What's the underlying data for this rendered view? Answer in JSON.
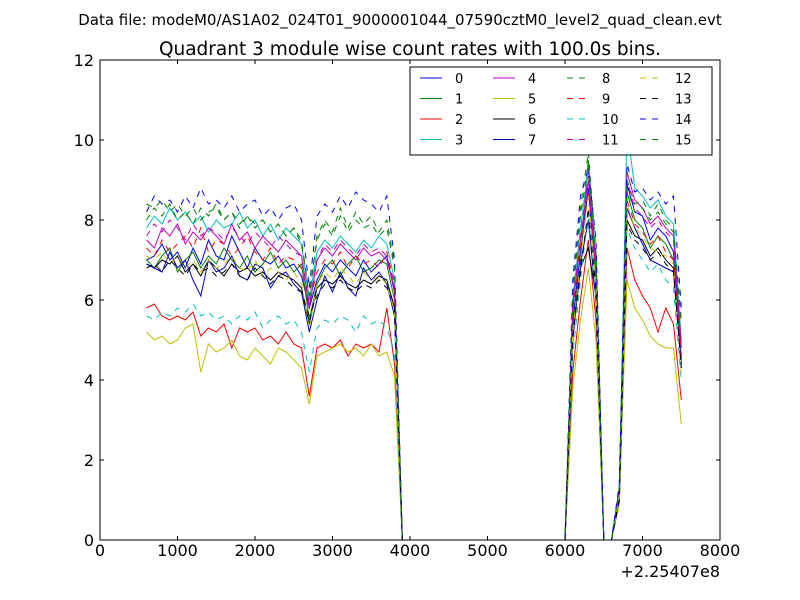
{
  "header": {
    "data_file": "Data file: modeM0/AS1A02_024T01_9000001044_07590cztM0_level2_quad_clean.evt"
  },
  "chart_data": {
    "type": "line",
    "title": "Quadrant 3 module wise count rates with 100.0s bins.",
    "xlabel": "",
    "ylabel": "",
    "x_offset_label": "+2.25407e8",
    "xlim": [
      0,
      8000
    ],
    "ylim": [
      0,
      12
    ],
    "xticks": [
      0,
      1000,
      2000,
      3000,
      4000,
      5000,
      6000,
      7000,
      8000
    ],
    "yticks": [
      0,
      2,
      4,
      6,
      8,
      10,
      12
    ],
    "legend_position": "top-right",
    "x": [
      600,
      700,
      800,
      900,
      1000,
      1100,
      1200,
      1300,
      1400,
      1500,
      1600,
      1700,
      1800,
      1900,
      2000,
      2100,
      2200,
      2300,
      2400,
      2500,
      2600,
      2700,
      2800,
      2900,
      3000,
      3100,
      3200,
      3300,
      3400,
      3500,
      3600,
      3700,
      3800,
      3900,
      4000,
      5900,
      6000,
      6100,
      6200,
      6300,
      6400,
      6500,
      6600,
      6700,
      6800,
      6900,
      7000,
      7100,
      7200,
      7300,
      7400,
      7500
    ],
    "series": [
      {
        "name": "0",
        "color": "#0000ff",
        "dash": false,
        "values": [
          7.0,
          7.1,
          7.4,
          7.0,
          7.2,
          6.8,
          7.3,
          6.9,
          7.5,
          7.1,
          7.0,
          7.6,
          7.2,
          6.8,
          7.3,
          7.0,
          6.9,
          7.1,
          6.8,
          6.9,
          6.6,
          5.8,
          6.5,
          6.9,
          6.7,
          7.0,
          6.8,
          6.6,
          7.0,
          6.7,
          6.9,
          7.1,
          6.2,
          0,
          0,
          0,
          0,
          5.5,
          7.2,
          8.8,
          6.5,
          0,
          0,
          1.2,
          8.9,
          8.2,
          8.1,
          7.5,
          7.8,
          7.6,
          7.2,
          4.5
        ]
      },
      {
        "name": "1",
        "color": "#008000",
        "dash": false,
        "values": [
          7.0,
          6.8,
          7.1,
          7.3,
          6.7,
          7.0,
          7.2,
          6.8,
          7.1,
          6.9,
          7.3,
          7.0,
          6.8,
          7.1,
          6.7,
          6.9,
          7.2,
          6.8,
          7.0,
          6.7,
          6.9,
          5.5,
          6.4,
          6.8,
          7.0,
          6.6,
          6.9,
          7.1,
          6.7,
          6.8,
          7.0,
          6.9,
          6.0,
          0,
          0,
          0,
          0,
          5.3,
          7.0,
          9.5,
          6.3,
          0,
          0,
          1.1,
          8.7,
          8.0,
          7.8,
          7.3,
          7.6,
          7.4,
          7.0,
          4.4
        ]
      },
      {
        "name": "2",
        "color": "#ff0000",
        "dash": false,
        "values": [
          5.8,
          5.9,
          5.6,
          5.5,
          5.6,
          5.5,
          5.7,
          5.1,
          5.3,
          5.2,
          5.4,
          4.8,
          5.3,
          5.2,
          5.3,
          5.0,
          5.1,
          4.9,
          5.2,
          4.9,
          4.8,
          3.6,
          4.8,
          4.9,
          4.8,
          5.0,
          4.6,
          4.9,
          4.8,
          4.9,
          4.7,
          5.8,
          4.4,
          0,
          0,
          0,
          0,
          4.2,
          6.0,
          7.5,
          5.5,
          0,
          0,
          1.0,
          7.3,
          6.5,
          6.1,
          5.8,
          5.2,
          5.8,
          5.4,
          3.5
        ]
      },
      {
        "name": "3",
        "color": "#00bfbf",
        "dash": false,
        "values": [
          7.8,
          8.1,
          7.9,
          8.3,
          8.0,
          8.2,
          7.9,
          8.1,
          7.7,
          8.0,
          7.8,
          7.9,
          8.2,
          7.8,
          8.0,
          7.6,
          7.9,
          7.5,
          7.8,
          7.6,
          7.4,
          6.0,
          7.2,
          7.5,
          7.3,
          7.6,
          7.4,
          7.2,
          7.5,
          7.3,
          7.6,
          7.4,
          6.5,
          0,
          0,
          0,
          0,
          6.0,
          7.8,
          9.3,
          7.0,
          0,
          0,
          1.3,
          10.3,
          8.8,
          8.6,
          8.3,
          8.5,
          8.1,
          7.9,
          5.0
        ]
      },
      {
        "name": "4",
        "color": "#bf00bf",
        "dash": false,
        "values": [
          7.5,
          7.3,
          7.8,
          7.6,
          7.9,
          7.4,
          7.7,
          7.5,
          7.8,
          7.6,
          7.4,
          7.9,
          7.5,
          7.7,
          7.3,
          7.6,
          7.4,
          7.2,
          7.5,
          7.3,
          7.1,
          5.8,
          7.0,
          7.3,
          7.1,
          7.4,
          7.2,
          7.0,
          7.3,
          7.1,
          7.2,
          7.0,
          6.3,
          0,
          0,
          0,
          0,
          5.8,
          7.5,
          9.0,
          6.8,
          0,
          0,
          1.2,
          9.2,
          8.5,
          8.3,
          7.9,
          8.1,
          7.8,
          7.6,
          4.8
        ]
      },
      {
        "name": "5",
        "color": "#bfbf00",
        "dash": false,
        "values": [
          5.2,
          5.0,
          5.1,
          4.9,
          5.0,
          5.3,
          5.4,
          4.2,
          4.9,
          4.7,
          4.8,
          5.0,
          4.6,
          4.5,
          4.8,
          4.6,
          4.4,
          4.8,
          4.7,
          4.5,
          4.3,
          3.4,
          4.6,
          4.7,
          4.8,
          4.9,
          4.7,
          4.8,
          4.6,
          4.9,
          4.6,
          4.7,
          4.1,
          0,
          0,
          0,
          0,
          3.8,
          5.5,
          6.8,
          5.0,
          0,
          0,
          0.9,
          6.5,
          5.8,
          5.5,
          5.1,
          4.9,
          4.8,
          4.8,
          2.9
        ]
      },
      {
        "name": "6",
        "color": "#000000",
        "dash": false,
        "values": [
          6.9,
          6.8,
          7.0,
          6.9,
          7.1,
          6.7,
          6.9,
          6.6,
          7.0,
          6.8,
          6.6,
          6.9,
          6.7,
          6.8,
          6.6,
          6.7,
          6.5,
          6.7,
          6.6,
          6.5,
          6.3,
          5.4,
          6.3,
          6.5,
          6.4,
          6.6,
          6.4,
          6.3,
          6.5,
          6.4,
          6.6,
          6.5,
          5.8,
          0,
          0,
          0,
          0,
          5.1,
          6.8,
          7.3,
          6.1,
          0,
          0,
          1.0,
          8.0,
          7.6,
          7.5,
          7.1,
          7.3,
          7.0,
          6.8,
          4.3
        ]
      },
      {
        "name": "7",
        "color": "#0000bf",
        "dash": false,
        "values": [
          6.9,
          6.8,
          6.7,
          7.2,
          6.8,
          7.0,
          6.5,
          6.1,
          7.0,
          6.7,
          6.8,
          7.1,
          6.6,
          6.5,
          6.9,
          6.8,
          6.3,
          6.6,
          6.7,
          6.4,
          6.2,
          5.2,
          6.0,
          6.6,
          6.2,
          6.7,
          6.3,
          6.1,
          6.8,
          6.5,
          6.7,
          6.4,
          5.6,
          0,
          0,
          0,
          0,
          5.0,
          6.9,
          8.0,
          6.0,
          0,
          0,
          1.0,
          8.3,
          7.8,
          7.4,
          7.0,
          6.9,
          6.8,
          6.7,
          4.4
        ]
      },
      {
        "name": "8",
        "color": "#008000",
        "dash": true,
        "values": [
          8.0,
          8.3,
          8.1,
          8.4,
          8.0,
          8.2,
          7.9,
          8.3,
          8.1,
          8.4,
          8.0,
          8.2,
          7.8,
          8.1,
          7.9,
          8.0,
          7.7,
          7.9,
          7.6,
          7.8,
          7.5,
          6.1,
          7.6,
          8.0,
          7.7,
          8.3,
          7.8,
          8.2,
          7.9,
          8.1,
          7.7,
          8.0,
          6.9,
          0,
          0,
          0,
          0,
          6.2,
          8.3,
          9.7,
          7.2,
          0,
          0,
          1.3,
          9.0,
          8.4,
          8.5,
          8.1,
          8.4,
          8.0,
          7.8,
          5.5
        ]
      },
      {
        "name": "9",
        "color": "#ff0000",
        "dash": true,
        "values": [
          7.3,
          7.1,
          7.5,
          7.2,
          7.4,
          7.6,
          7.3,
          7.8,
          7.2,
          7.5,
          7.4,
          7.1,
          7.3,
          7.6,
          7.2,
          7.0,
          7.3,
          6.9,
          7.1,
          7.0,
          6.8,
          5.9,
          6.7,
          7.0,
          6.9,
          7.2,
          6.8,
          7.1,
          6.9,
          7.0,
          6.8,
          7.2,
          6.4,
          0,
          0,
          0,
          0,
          5.7,
          7.4,
          8.7,
          6.6,
          0,
          0,
          1.1,
          8.5,
          7.9,
          7.7,
          7.4,
          7.6,
          7.2,
          7.0,
          4.6
        ]
      },
      {
        "name": "10",
        "color": "#00bfbf",
        "dash": true,
        "values": [
          5.6,
          5.5,
          5.7,
          5.6,
          5.8,
          5.7,
          5.9,
          5.6,
          5.7,
          5.5,
          5.6,
          5.4,
          5.6,
          5.5,
          5.7,
          5.3,
          5.5,
          5.6,
          5.4,
          5.5,
          5.2,
          4.2,
          5.3,
          5.5,
          5.4,
          5.6,
          5.5,
          5.2,
          5.6,
          5.4,
          5.5,
          5.3,
          4.7,
          0,
          0,
          0,
          0,
          4.6,
          6.5,
          8.2,
          6.0,
          0,
          0,
          1.0,
          7.8,
          7.3,
          7.0,
          6.7,
          6.9,
          6.5,
          6.3,
          4.0
        ]
      },
      {
        "name": "11",
        "color": "#bf00bf",
        "dash": true,
        "values": [
          7.6,
          7.9,
          7.7,
          8.0,
          7.8,
          7.5,
          7.9,
          7.6,
          7.8,
          7.7,
          7.5,
          7.8,
          7.6,
          7.4,
          7.7,
          7.5,
          7.3,
          7.6,
          7.4,
          7.2,
          7.1,
          5.9,
          7.0,
          7.4,
          7.2,
          7.5,
          7.3,
          7.1,
          7.4,
          7.2,
          7.3,
          7.1,
          6.4,
          0,
          0,
          0,
          0,
          5.9,
          7.6,
          9.1,
          6.9,
          0,
          0,
          1.2,
          9.0,
          8.3,
          8.1,
          7.8,
          8.0,
          7.7,
          7.5,
          4.9
        ]
      },
      {
        "name": "12",
        "color": "#bfbf00",
        "dash": true,
        "values": [
          7.1,
          7.0,
          7.2,
          6.9,
          7.1,
          6.8,
          7.0,
          6.7,
          7.0,
          6.8,
          6.9,
          7.1,
          6.8,
          6.7,
          7.0,
          6.6,
          6.8,
          6.7,
          6.5,
          6.7,
          6.4,
          5.3,
          6.4,
          6.7,
          6.5,
          6.8,
          6.6,
          6.4,
          6.7,
          6.5,
          6.6,
          6.4,
          5.7,
          0,
          0,
          0,
          0,
          5.2,
          7.0,
          8.6,
          6.4,
          0,
          0,
          1.1,
          8.4,
          7.8,
          7.6,
          7.3,
          7.2,
          7.1,
          6.9,
          4.2
        ]
      },
      {
        "name": "13",
        "color": "#000000",
        "dash": true,
        "values": [
          6.8,
          6.9,
          6.7,
          7.0,
          6.8,
          6.6,
          6.9,
          6.7,
          6.8,
          6.6,
          6.7,
          6.9,
          6.6,
          6.5,
          6.8,
          6.6,
          6.4,
          6.6,
          6.5,
          6.3,
          6.2,
          5.6,
          6.1,
          6.4,
          6.3,
          6.5,
          6.3,
          6.2,
          6.4,
          6.3,
          6.5,
          6.3,
          5.9,
          0,
          0,
          0,
          0,
          5.1,
          6.7,
          8.3,
          6.2,
          0,
          0,
          1.0,
          7.9,
          7.5,
          7.3,
          7.0,
          7.2,
          6.9,
          6.7,
          4.3
        ]
      },
      {
        "name": "14",
        "color": "#0000ff",
        "dash": true,
        "values": [
          8.2,
          8.6,
          8.4,
          8.5,
          8.2,
          8.6,
          8.3,
          8.8,
          8.4,
          8.5,
          8.3,
          8.6,
          8.2,
          8.4,
          8.5,
          8.1,
          8.3,
          8.0,
          8.3,
          8.4,
          8.0,
          6.3,
          8.1,
          8.4,
          8.2,
          8.6,
          8.3,
          8.7,
          8.5,
          8.4,
          8.2,
          8.6,
          7.0,
          0,
          0,
          0,
          0,
          6.5,
          8.6,
          9.3,
          7.5,
          0,
          0,
          1.4,
          9.4,
          8.7,
          8.8,
          8.5,
          8.7,
          8.4,
          8.6,
          5.8
        ]
      },
      {
        "name": "15",
        "color": "#008000",
        "dash": true,
        "values": [
          8.4,
          8.3,
          8.5,
          8.2,
          8.4,
          8.1,
          8.3,
          8.0,
          8.2,
          8.3,
          8.0,
          8.2,
          7.9,
          8.1,
          7.8,
          8.0,
          7.7,
          7.9,
          7.6,
          7.8,
          7.4,
          6.1,
          7.5,
          7.9,
          7.6,
          8.1,
          7.7,
          8.0,
          7.8,
          7.9,
          7.6,
          7.8,
          6.8,
          0,
          0,
          0,
          0,
          6.1,
          8.1,
          9.4,
          7.1,
          0,
          0,
          1.3,
          8.8,
          8.2,
          8.3,
          8.0,
          8.2,
          7.9,
          7.7,
          5.4
        ]
      }
    ]
  }
}
